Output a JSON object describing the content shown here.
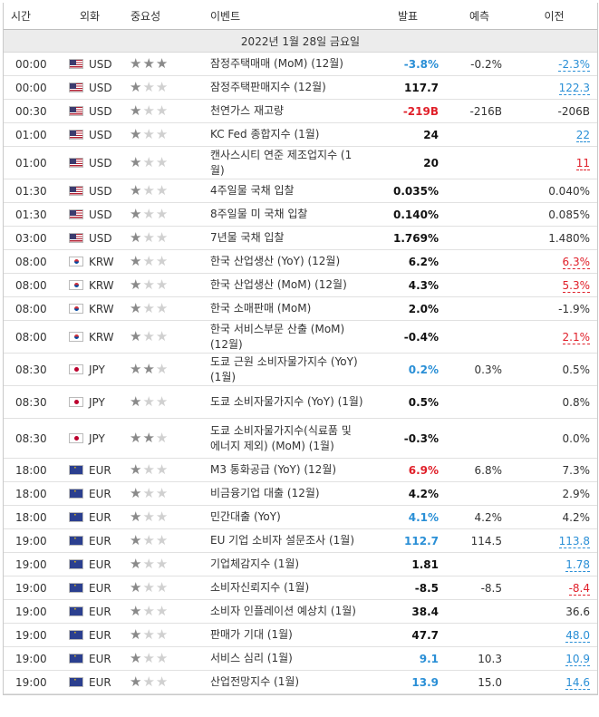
{
  "headers": {
    "time": "시간",
    "currency": "외화",
    "importance": "중요성",
    "event": "이벤트",
    "actual": "발표",
    "forecast": "예측",
    "previous": "이전"
  },
  "date_label": "2022년 1월 28일 금요일",
  "colors": {
    "positive": "#2a8fd6",
    "negative": "#e0202a",
    "star_on": "#8a8a8a",
    "star_off": "#d0d0d0"
  },
  "rows": [
    {
      "time": "00:00",
      "flag": "us",
      "currency": "USD",
      "stars": 3,
      "event": "잠정주택매매 (MoM) (12월)",
      "actual": "-3.8%",
      "actual_tone": "up",
      "forecast": "-0.2%",
      "previous": "-2.3%",
      "prev_tone": "prev-up"
    },
    {
      "time": "00:00",
      "flag": "us",
      "currency": "USD",
      "stars": 1,
      "event": "잠정주택판매지수 (12월)",
      "actual": "117.7",
      "actual_tone": "neutral",
      "forecast": "",
      "previous": "122.3",
      "prev_tone": "prev-up"
    },
    {
      "time": "00:30",
      "flag": "us",
      "currency": "USD",
      "stars": 1,
      "event": "천연가스 재고량",
      "actual": "-219B",
      "actual_tone": "down",
      "forecast": "-216B",
      "previous": "-206B",
      "prev_tone": "prev-plain"
    },
    {
      "time": "01:00",
      "flag": "us",
      "currency": "USD",
      "stars": 1,
      "event": "KC Fed 종합지수 (1월)",
      "actual": "24",
      "actual_tone": "neutral",
      "forecast": "",
      "previous": "22",
      "prev_tone": "prev-up"
    },
    {
      "time": "01:00",
      "flag": "us",
      "currency": "USD",
      "stars": 1,
      "event": "캔사스시티 연준 제조업지수 (1월)",
      "actual": "20",
      "actual_tone": "neutral",
      "forecast": "",
      "previous": "11",
      "prev_tone": "prev-down"
    },
    {
      "time": "01:30",
      "flag": "us",
      "currency": "USD",
      "stars": 1,
      "event": "4주일물 국채 입찰",
      "actual": "0.035%",
      "actual_tone": "neutral",
      "forecast": "",
      "previous": "0.040%",
      "prev_tone": "prev-plain"
    },
    {
      "time": "01:30",
      "flag": "us",
      "currency": "USD",
      "stars": 1,
      "event": "8주일물 미 국채 입찰",
      "actual": "0.140%",
      "actual_tone": "neutral",
      "forecast": "",
      "previous": "0.085%",
      "prev_tone": "prev-plain"
    },
    {
      "time": "03:00",
      "flag": "us",
      "currency": "USD",
      "stars": 1,
      "event": "7년물 국채 입찰",
      "actual": "1.769%",
      "actual_tone": "neutral",
      "forecast": "",
      "previous": "1.480%",
      "prev_tone": "prev-plain"
    },
    {
      "time": "08:00",
      "flag": "kr",
      "currency": "KRW",
      "stars": 1,
      "event": "한국 산업생산 (YoY) (12월)",
      "actual": "6.2%",
      "actual_tone": "neutral",
      "forecast": "",
      "previous": "6.3%",
      "prev_tone": "prev-down"
    },
    {
      "time": "08:00",
      "flag": "kr",
      "currency": "KRW",
      "stars": 1,
      "event": "한국 산업생산 (MoM) (12월)",
      "actual": "4.3%",
      "actual_tone": "neutral",
      "forecast": "",
      "previous": "5.3%",
      "prev_tone": "prev-down"
    },
    {
      "time": "08:00",
      "flag": "kr",
      "currency": "KRW",
      "stars": 1,
      "event": "한국 소매판매 (MoM)",
      "actual": "2.0%",
      "actual_tone": "neutral",
      "forecast": "",
      "previous": "-1.9%",
      "prev_tone": "prev-plain"
    },
    {
      "time": "08:00",
      "flag": "kr",
      "currency": "KRW",
      "stars": 1,
      "event": "한국 서비스부문 산출 (MoM) (12월)",
      "actual": "-0.4%",
      "actual_tone": "neutral",
      "forecast": "",
      "previous": "2.1%",
      "prev_tone": "prev-down"
    },
    {
      "time": "08:30",
      "flag": "jp",
      "currency": "JPY",
      "stars": 2,
      "event": "도쿄 근원 소비자물가지수 (YoY) (1월)",
      "actual": "0.2%",
      "actual_tone": "up",
      "forecast": "0.3%",
      "previous": "0.5%",
      "prev_tone": "prev-plain"
    },
    {
      "time": "08:30",
      "flag": "jp",
      "currency": "JPY",
      "stars": 1,
      "event": "도쿄 소비자물가지수 (YoY) (1월)",
      "actual": "0.5%",
      "actual_tone": "neutral",
      "forecast": "",
      "previous": "0.8%",
      "prev_tone": "prev-plain"
    },
    {
      "time": "08:30",
      "flag": "jp",
      "currency": "JPY",
      "stars": 2,
      "event": "도쿄 소비자물가지수(식료품 및 에너지 제외) (MoM) (1월)",
      "actual": "-0.3%",
      "actual_tone": "neutral",
      "forecast": "",
      "previous": "0.0%",
      "prev_tone": "prev-plain"
    },
    {
      "time": "18:00",
      "flag": "eu",
      "currency": "EUR",
      "stars": 1,
      "event": "M3 통화공급 (YoY) (12월)",
      "actual": "6.9%",
      "actual_tone": "down",
      "forecast": "6.8%",
      "previous": "7.3%",
      "prev_tone": "prev-plain"
    },
    {
      "time": "18:00",
      "flag": "eu",
      "currency": "EUR",
      "stars": 1,
      "event": "비금융기업 대출 (12월)",
      "actual": "4.2%",
      "actual_tone": "neutral",
      "forecast": "",
      "previous": "2.9%",
      "prev_tone": "prev-plain"
    },
    {
      "time": "18:00",
      "flag": "eu",
      "currency": "EUR",
      "stars": 1,
      "event": "민간대출 (YoY)",
      "actual": "4.1%",
      "actual_tone": "up",
      "forecast": "4.2%",
      "previous": "4.2%",
      "prev_tone": "prev-plain"
    },
    {
      "time": "19:00",
      "flag": "eu",
      "currency": "EUR",
      "stars": 1,
      "event": "EU 기업 소비자 설문조사 (1월)",
      "actual": "112.7",
      "actual_tone": "up",
      "forecast": "114.5",
      "previous": "113.8",
      "prev_tone": "prev-up"
    },
    {
      "time": "19:00",
      "flag": "eu",
      "currency": "EUR",
      "stars": 1,
      "event": "기업체감지수 (1월)",
      "actual": "1.81",
      "actual_tone": "neutral",
      "forecast": "",
      "previous": "1.78",
      "prev_tone": "prev-up"
    },
    {
      "time": "19:00",
      "flag": "eu",
      "currency": "EUR",
      "stars": 1,
      "event": "소비자신뢰지수 (1월)",
      "actual": "-8.5",
      "actual_tone": "neutral",
      "forecast": "-8.5",
      "previous": "-8.4",
      "prev_tone": "prev-down"
    },
    {
      "time": "19:00",
      "flag": "eu",
      "currency": "EUR",
      "stars": 1,
      "event": "소비자 인플레이션 예상치 (1월)",
      "actual": "38.4",
      "actual_tone": "neutral",
      "forecast": "",
      "previous": "36.6",
      "prev_tone": "prev-plain"
    },
    {
      "time": "19:00",
      "flag": "eu",
      "currency": "EUR",
      "stars": 1,
      "event": "판매가 기대 (1월)",
      "actual": "47.7",
      "actual_tone": "neutral",
      "forecast": "",
      "previous": "48.0",
      "prev_tone": "prev-up"
    },
    {
      "time": "19:00",
      "flag": "eu",
      "currency": "EUR",
      "stars": 1,
      "event": "서비스 심리 (1월)",
      "actual": "9.1",
      "actual_tone": "up",
      "forecast": "10.3",
      "previous": "10.9",
      "prev_tone": "prev-up"
    },
    {
      "time": "19:00",
      "flag": "eu",
      "currency": "EUR",
      "stars": 1,
      "event": "산업전망지수 (1월)",
      "actual": "13.9",
      "actual_tone": "up",
      "forecast": "15.0",
      "previous": "14.6",
      "prev_tone": "prev-up"
    }
  ]
}
